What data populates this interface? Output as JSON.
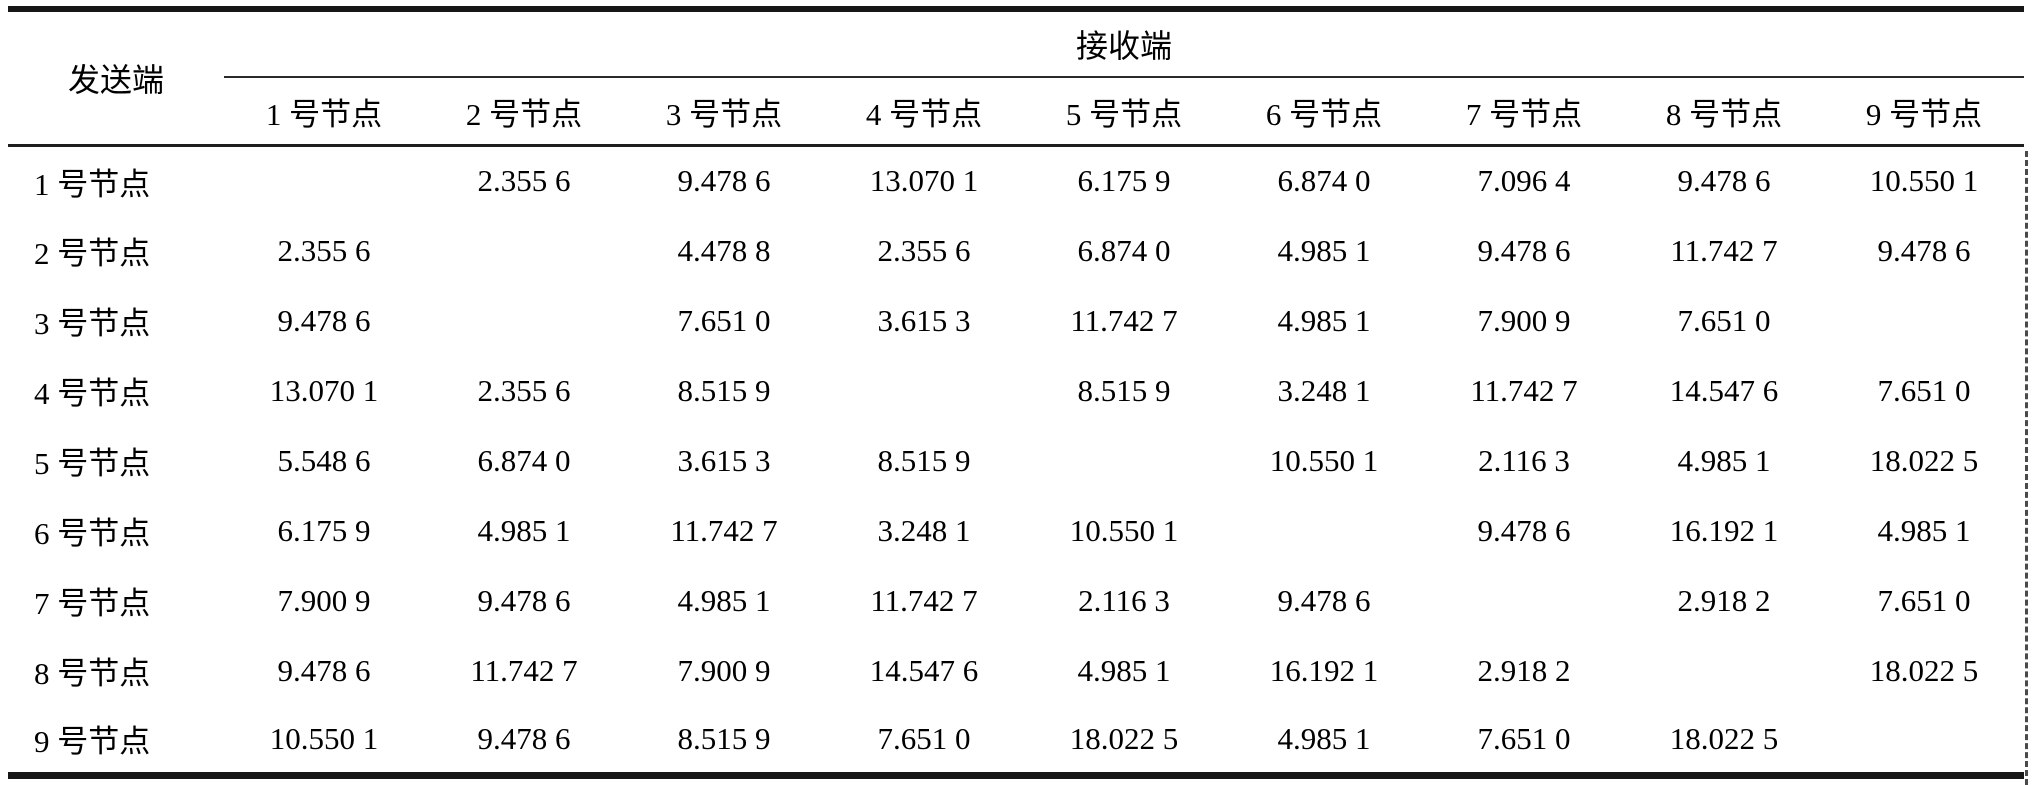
{
  "table": {
    "corner_header": "发送端",
    "span_header": "接收端",
    "columns": [
      "1 号节点",
      "2 号节点",
      "3 号节点",
      "4 号节点",
      "5 号节点",
      "6 号节点",
      "7 号节点",
      "8 号节点",
      "9 号节点"
    ],
    "rows": [
      {
        "label": "1 号节点",
        "values": [
          "",
          "2.355 6",
          "9.478 6",
          "13.070 1",
          "6.175 9",
          "6.874 0",
          "7.096 4",
          "9.478 6",
          "10.550 1"
        ]
      },
      {
        "label": "2 号节点",
        "values": [
          "2.355 6",
          "",
          "4.478 8",
          "2.355 6",
          "6.874 0",
          "4.985 1",
          "9.478 6",
          "11.742 7",
          "9.478 6"
        ]
      },
      {
        "label": "3 号节点",
        "values": [
          "9.478 6",
          "",
          "7.651 0",
          "3.615 3",
          "11.742 7",
          "4.985 1",
          "7.900 9",
          "7.651 0",
          ""
        ]
      },
      {
        "label": "4 号节点",
        "values": [
          "13.070 1",
          "2.355 6",
          "8.515 9",
          "",
          "8.515 9",
          "3.248 1",
          "11.742 7",
          "14.547 6",
          "7.651 0"
        ]
      },
      {
        "label": "5 号节点",
        "values": [
          "5.548 6",
          "6.874 0",
          "3.615 3",
          "8.515 9",
          "",
          "10.550 1",
          "2.116 3",
          "4.985 1",
          "18.022 5"
        ]
      },
      {
        "label": "6 号节点",
        "values": [
          "6.175 9",
          "4.985 1",
          "11.742 7",
          "3.248 1",
          "10.550 1",
          "",
          "9.478 6",
          "16.192 1",
          "4.985 1"
        ]
      },
      {
        "label": "7 号节点",
        "values": [
          "7.900 9",
          "9.478 6",
          "4.985 1",
          "11.742 7",
          "2.116 3",
          "9.478 6",
          "",
          "2.918 2",
          "7.651 0"
        ]
      },
      {
        "label": "8 号节点",
        "values": [
          "9.478 6",
          "11.742 7",
          "7.900 9",
          "14.547 6",
          "4.985 1",
          "16.192 1",
          "2.918 2",
          "",
          "18.022 5"
        ]
      },
      {
        "label": "9 号节点",
        "values": [
          "10.550 1",
          "9.478 6",
          "8.515 9",
          "7.651 0",
          "18.022 5",
          "4.985 1",
          "7.651 0",
          "18.022 5",
          ""
        ]
      }
    ]
  },
  "colors": {
    "text": "#000000",
    "background": "#ffffff",
    "rule": "#161616"
  }
}
